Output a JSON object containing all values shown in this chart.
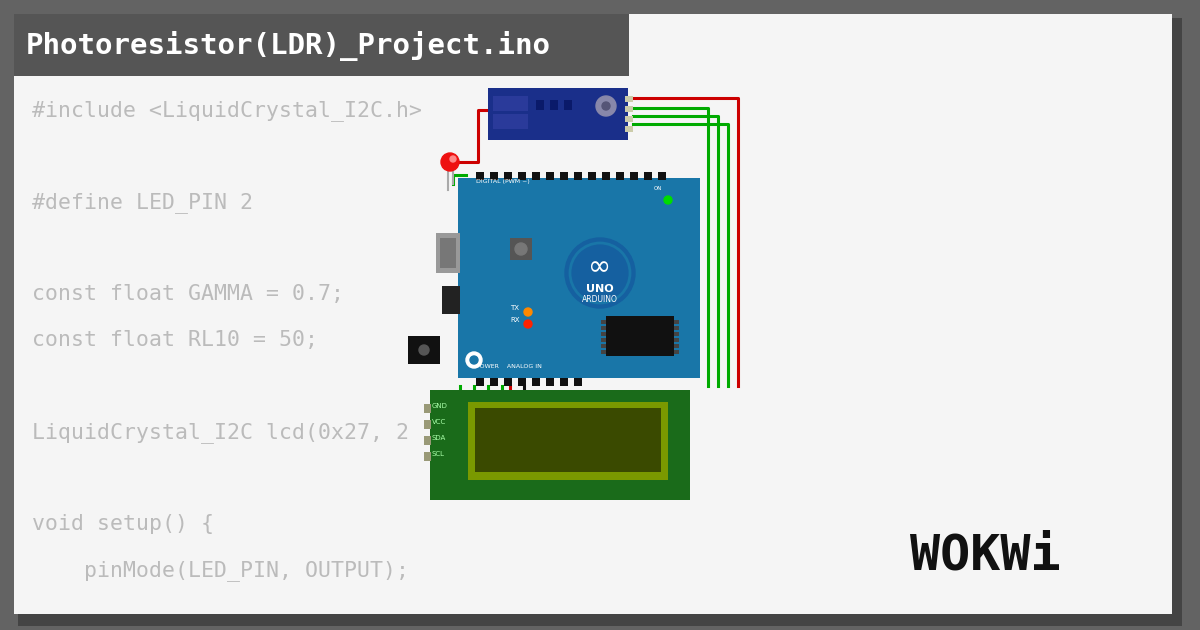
{
  "bg_outer": "#636363",
  "bg_inner": "#f5f5f5",
  "title_bg": "#555555",
  "title_text": "Photoresistor(LDR)_Project.ino",
  "title_color": "#ffffff",
  "code_lines": [
    "#include <LiquidCrystal_I2C.h>",
    "",
    "#define LED_PIN 2",
    "",
    "const float GAMMA = 0.7;",
    "const float RL10 = 50;",
    "",
    "LiquidCrystal_I2C lcd(0x27, 2",
    "",
    "void setup() {",
    "    pinMode(LED_PIN, OUTPUT);"
  ],
  "code_color": "#bbbbbb",
  "wokwi_color": "#111111",
  "arduino_blue": "#1976a8",
  "lcd_green": "#1a6b1a",
  "lcd_screen_green": "#7a9900",
  "sensor_blue": "#1a2f8a",
  "wire_red": "#cc0000",
  "wire_green": "#00aa00",
  "wire_black": "#111111"
}
